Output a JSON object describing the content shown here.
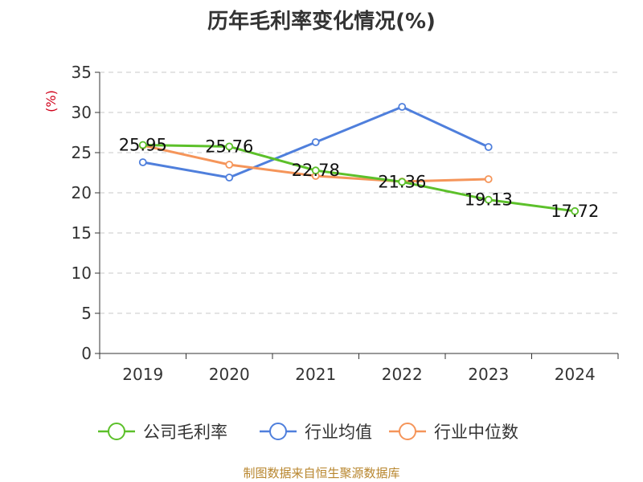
{
  "title": "历年毛利率变化情况(%)",
  "footer": "制图数据来自恒生聚源数据库",
  "chart_data": {
    "type": "line",
    "title": "历年毛利率变化情况(%)",
    "ylabel": "(%)",
    "xlabel": "",
    "categories": [
      "2019",
      "2020",
      "2021",
      "2022",
      "2023",
      "2024"
    ],
    "ylim": [
      0,
      35
    ],
    "yticks": [
      0,
      5,
      10,
      15,
      20,
      25,
      30,
      35
    ],
    "grid": "horizontal-dashed",
    "legend_position": "bottom",
    "series": [
      {
        "name": "公司毛利率",
        "color": "#5cc02a",
        "values": [
          25.95,
          25.76,
          22.78,
          21.36,
          19.13,
          17.72
        ],
        "data_labels": true
      },
      {
        "name": "行业均值",
        "color": "#4f7fdc",
        "values": [
          23.8,
          21.9,
          26.3,
          30.7,
          25.7,
          null
        ],
        "data_labels": false
      },
      {
        "name": "行业中位数",
        "color": "#f5955a",
        "values": [
          25.9,
          23.5,
          22.1,
          21.4,
          21.7,
          null
        ],
        "data_labels": false
      }
    ]
  }
}
